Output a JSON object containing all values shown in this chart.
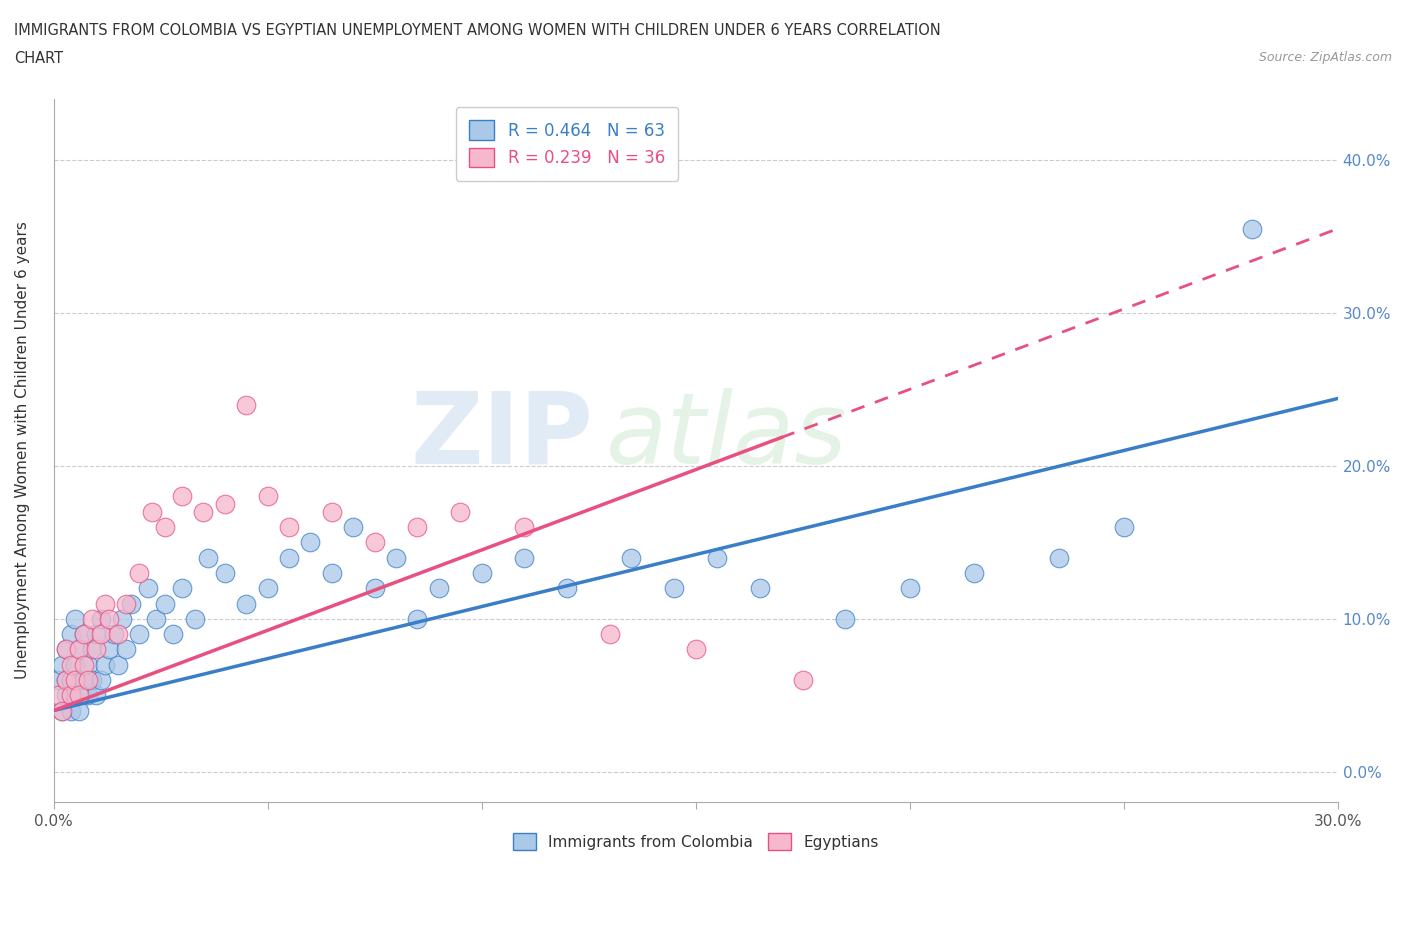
{
  "title_line1": "IMMIGRANTS FROM COLOMBIA VS EGYPTIAN UNEMPLOYMENT AMONG WOMEN WITH CHILDREN UNDER 6 YEARS CORRELATION",
  "title_line2": "CHART",
  "source_text": "Source: ZipAtlas.com",
  "ylabel": "Unemployment Among Women with Children Under 6 years",
  "xlim": [
    0.0,
    0.3
  ],
  "ylim": [
    -0.02,
    0.44
  ],
  "xticks": [
    0.0,
    0.05,
    0.1,
    0.15,
    0.2,
    0.25,
    0.3
  ],
  "yticks": [
    0.0,
    0.1,
    0.2,
    0.3,
    0.4
  ],
  "ytick_labels": [
    "0.0%",
    "10.0%",
    "20.0%",
    "30.0%",
    "40.0%"
  ],
  "xtick_labels": [
    "0.0%",
    "",
    "",
    "",
    "",
    "",
    "30.0%"
  ],
  "colombia_color": "#aac8e8",
  "egypt_color": "#f5b8cc",
  "colombia_line_color": "#3a7ec8",
  "egypt_line_color": "#e85080",
  "R_colombia": 0.464,
  "N_colombia": 63,
  "R_egypt": 0.239,
  "N_egypt": 36,
  "watermark_zip": "ZIP",
  "watermark_atlas": "atlas",
  "colombia_slope": 0.68,
  "colombia_intercept": 0.04,
  "egypt_slope": 1.05,
  "egypt_intercept": 0.04,
  "colombia_scatter_x": [
    0.001,
    0.002,
    0.002,
    0.003,
    0.003,
    0.003,
    0.004,
    0.004,
    0.004,
    0.005,
    0.005,
    0.005,
    0.006,
    0.006,
    0.007,
    0.007,
    0.008,
    0.008,
    0.009,
    0.009,
    0.01,
    0.01,
    0.011,
    0.011,
    0.012,
    0.013,
    0.014,
    0.015,
    0.016,
    0.017,
    0.018,
    0.02,
    0.022,
    0.024,
    0.026,
    0.028,
    0.03,
    0.033,
    0.036,
    0.04,
    0.045,
    0.05,
    0.055,
    0.06,
    0.065,
    0.07,
    0.075,
    0.08,
    0.085,
    0.09,
    0.1,
    0.11,
    0.12,
    0.135,
    0.145,
    0.155,
    0.165,
    0.185,
    0.2,
    0.215,
    0.235,
    0.25,
    0.28
  ],
  "colombia_scatter_y": [
    0.06,
    0.04,
    0.07,
    0.05,
    0.06,
    0.08,
    0.04,
    0.06,
    0.09,
    0.05,
    0.07,
    0.1,
    0.04,
    0.08,
    0.06,
    0.09,
    0.05,
    0.07,
    0.06,
    0.08,
    0.05,
    0.09,
    0.06,
    0.1,
    0.07,
    0.08,
    0.09,
    0.07,
    0.1,
    0.08,
    0.11,
    0.09,
    0.12,
    0.1,
    0.11,
    0.09,
    0.12,
    0.1,
    0.14,
    0.13,
    0.11,
    0.12,
    0.14,
    0.15,
    0.13,
    0.16,
    0.12,
    0.14,
    0.1,
    0.12,
    0.13,
    0.14,
    0.12,
    0.14,
    0.12,
    0.14,
    0.12,
    0.1,
    0.12,
    0.13,
    0.14,
    0.16,
    0.355
  ],
  "egypt_scatter_x": [
    0.001,
    0.002,
    0.003,
    0.003,
    0.004,
    0.004,
    0.005,
    0.006,
    0.006,
    0.007,
    0.007,
    0.008,
    0.009,
    0.01,
    0.011,
    0.012,
    0.013,
    0.015,
    0.017,
    0.02,
    0.023,
    0.026,
    0.03,
    0.035,
    0.04,
    0.045,
    0.05,
    0.055,
    0.065,
    0.075,
    0.085,
    0.095,
    0.11,
    0.13,
    0.15,
    0.175
  ],
  "egypt_scatter_y": [
    0.05,
    0.04,
    0.06,
    0.08,
    0.05,
    0.07,
    0.06,
    0.05,
    0.08,
    0.07,
    0.09,
    0.06,
    0.1,
    0.08,
    0.09,
    0.11,
    0.1,
    0.09,
    0.11,
    0.13,
    0.17,
    0.16,
    0.18,
    0.17,
    0.175,
    0.24,
    0.18,
    0.16,
    0.17,
    0.15,
    0.16,
    0.17,
    0.16,
    0.09,
    0.08,
    0.06
  ]
}
